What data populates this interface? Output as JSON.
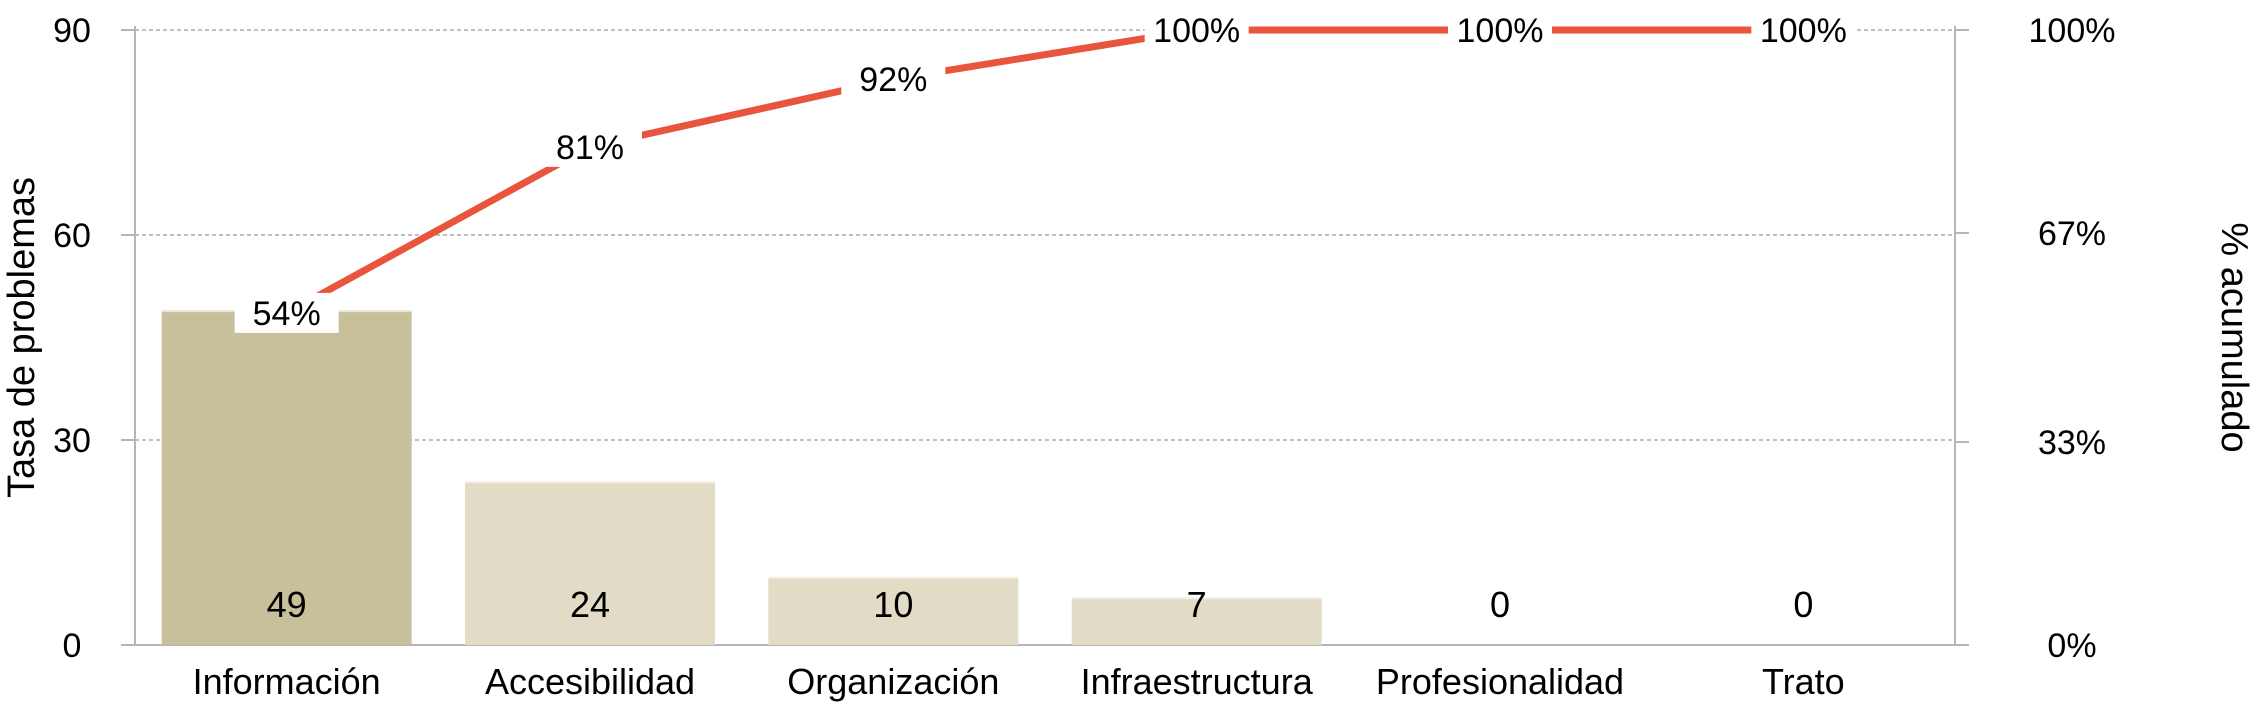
{
  "chart_data": {
    "type": "bar",
    "title": "",
    "categories": [
      "Información",
      "Accesibilidad",
      "Organización",
      "Infraestructura",
      "Profesionalidad",
      "Trato"
    ],
    "series": [
      {
        "type": "bar",
        "axis": "left",
        "values": [
          49,
          24,
          10,
          7,
          0,
          0
        ],
        "value_labels": [
          "49",
          "24",
          "10",
          "7",
          "0",
          "0"
        ]
      },
      {
        "type": "line",
        "axis": "right",
        "values": [
          54,
          81,
          92,
          100,
          100,
          100
        ],
        "value_labels": [
          "54%",
          "81%",
          "92%",
          "100%",
          "100%",
          "100%"
        ]
      }
    ],
    "ylabel": "Tasa de problemas",
    "y2label": "% acumulado",
    "ylim": [
      0,
      90
    ],
    "y2lim": [
      0,
      100
    ],
    "yticks": [
      "0",
      "30",
      "60",
      "90"
    ],
    "y2ticks": [
      "0%",
      "33%",
      "67%",
      "100%"
    ],
    "grid": true,
    "legend": "none",
    "colors": {
      "highlight_bar": "#c8bf9b",
      "bar": "#e2dbc6",
      "line": "#e8553c",
      "grid": "#9a9a9a",
      "axis": "#b5b5b5",
      "text": "#000000"
    }
  }
}
